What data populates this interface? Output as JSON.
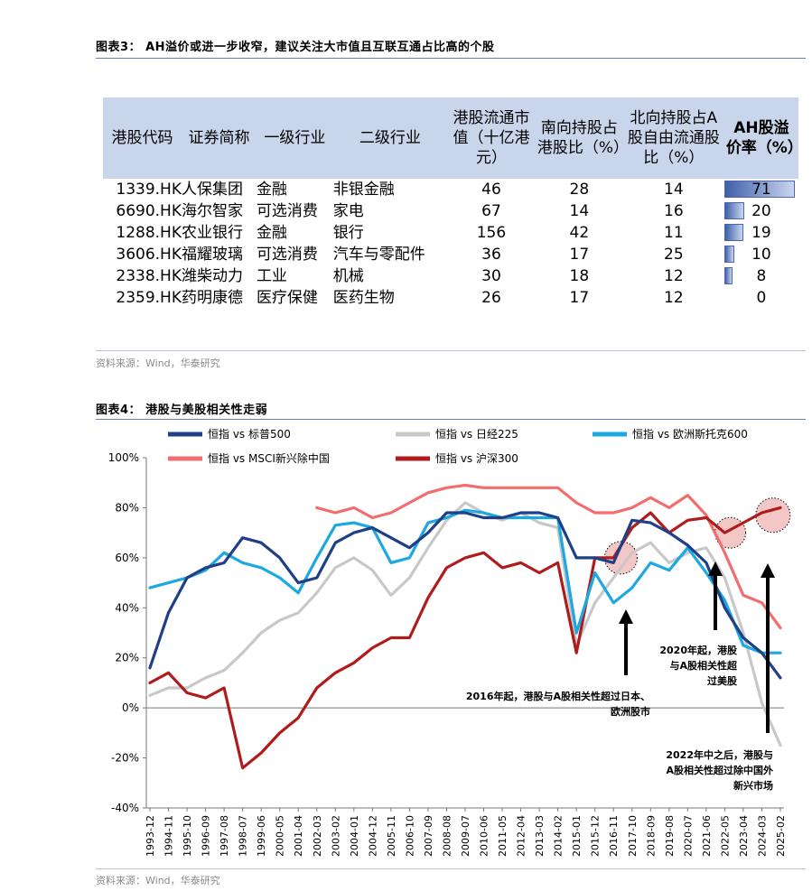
{
  "fig3": {
    "title": "图表3： AH溢价或进一步收窄，建议关注大市值且互联互通占比高的个股",
    "source": "资料来源：Wind，华泰研究",
    "headers": [
      "港股代码",
      "证券简称",
      "一级行业",
      "二级行业",
      "港股流通市值（十亿港元）",
      "南向持股占港股比（%）",
      "北向持股占A股自由流通股比（%）",
      "AH股溢价率（%）"
    ],
    "rows": [
      {
        "code": "1339.HK",
        "name": "人保集团",
        "ind1": "金融",
        "ind2": "非银金融",
        "mcap": "46",
        "south": "28",
        "north": "14",
        "ah": "71",
        "ah_num": 71
      },
      {
        "code": "6690.HK",
        "name": "海尔智家",
        "ind1": "可选消费",
        "ind2": "家电",
        "mcap": "67",
        "south": "14",
        "north": "16",
        "ah": "20",
        "ah_num": 20
      },
      {
        "code": "1288.HK",
        "name": "农业银行",
        "ind1": "金融",
        "ind2": "银行",
        "mcap": "156",
        "south": "42",
        "north": "11",
        "ah": "19",
        "ah_num": 19
      },
      {
        "code": "3606.HK",
        "name": "福耀玻璃",
        "ind1": "可选消费",
        "ind2": "汽车与零配件",
        "mcap": "36",
        "south": "17",
        "north": "25",
        "ah": "10",
        "ah_num": 10
      },
      {
        "code": "2338.HK",
        "name": "潍柴动力",
        "ind1": "工业",
        "ind2": "机械",
        "mcap": "30",
        "south": "18",
        "north": "12",
        "ah": "8",
        "ah_num": 8
      },
      {
        "code": "2359.HK",
        "name": "药明康德",
        "ind1": "医疗保健",
        "ind2": "医药生物",
        "mcap": "26",
        "south": "17",
        "north": "12",
        "ah": "0",
        "ah_num": 0
      }
    ]
  },
  "fig4": {
    "title": "图表4： 港股与美股相关性走弱",
    "source": "资料来源：Wind，华泰研究",
    "annotations": {
      "a2016": "2016年起，港股与A股相关性超过日本、欧洲股市",
      "a2020": "2020年起，港股与A股相关性超过美股",
      "a2022": "2022年中之后，港股与A股相关性超过除中国外新兴市场"
    }
  },
  "chart_data": {
    "type": "line",
    "title": "",
    "xlabel": "",
    "ylabel": "",
    "ylim": [
      -40,
      100
    ],
    "yticks": [
      "100%",
      "80%",
      "60%",
      "40%",
      "20%",
      "0%",
      "-20%",
      "-40%"
    ],
    "xticks": [
      "1993-12",
      "1994-11",
      "1995-10",
      "1996-09",
      "1997-08",
      "1998-07",
      "1999-06",
      "2000-05",
      "2001-04",
      "2002-03",
      "2003-02",
      "2004-01",
      "2004-12",
      "2005-11",
      "2006-10",
      "2007-09",
      "2008-08",
      "2009-07",
      "2010-06",
      "2011-05",
      "2012-04",
      "2013-03",
      "2014-02",
      "2015-01",
      "2015-12",
      "2016-11",
      "2017-10",
      "2018-09",
      "2019-08",
      "2020-07",
      "2021-06",
      "2022-05",
      "2023-04",
      "2024-03",
      "2025-02"
    ],
    "grid": false,
    "legend_position": "top",
    "series": [
      {
        "name": "恒指 vs 标普500",
        "color": "#1f3f86",
        "values": [
          16,
          38,
          52,
          56,
          58,
          68,
          66,
          60,
          50,
          52,
          66,
          70,
          72,
          68,
          64,
          70,
          78,
          78,
          76,
          76,
          78,
          78,
          76,
          60,
          60,
          58,
          75,
          74,
          70,
          65,
          58,
          40,
          28,
          22,
          12
        ]
      },
      {
        "name": "恒指 vs 日经225",
        "color": "#c8c8c8",
        "values": [
          5,
          8,
          8,
          12,
          15,
          22,
          30,
          35,
          38,
          46,
          56,
          60,
          55,
          45,
          52,
          64,
          75,
          82,
          78,
          75,
          78,
          74,
          72,
          25,
          42,
          52,
          62,
          66,
          58,
          62,
          64,
          52,
          30,
          2,
          -15
        ]
      },
      {
        "name": "恒指 vs 欧洲斯托克600",
        "color": "#1ca8e0",
        "values": [
          48,
          50,
          52,
          55,
          62,
          58,
          56,
          52,
          46,
          60,
          73,
          74,
          72,
          58,
          60,
          74,
          76,
          79,
          78,
          76,
          76,
          76,
          76,
          30,
          54,
          42,
          48,
          58,
          55,
          64,
          54,
          43,
          25,
          22,
          22
        ]
      },
      {
        "name": "恒指 vs MSCI新兴除中国",
        "color": "#f26d6d",
        "values": [
          null,
          null,
          null,
          null,
          null,
          null,
          null,
          null,
          null,
          80,
          78,
          80,
          76,
          78,
          82,
          86,
          88,
          89,
          88,
          88,
          88,
          88,
          88,
          82,
          78,
          78,
          80,
          84,
          80,
          85,
          77,
          62,
          45,
          42,
          32
        ]
      },
      {
        "name": "恒指 vs 沪深300",
        "color": "#b01c1c",
        "values": [
          10,
          14,
          6,
          4,
          8,
          -24,
          -18,
          -10,
          -4,
          8,
          14,
          18,
          24,
          28,
          28,
          44,
          56,
          60,
          62,
          56,
          58,
          54,
          58,
          22,
          60,
          60,
          72,
          78,
          70,
          75,
          76,
          70,
          74,
          78,
          80
        ]
      }
    ]
  }
}
